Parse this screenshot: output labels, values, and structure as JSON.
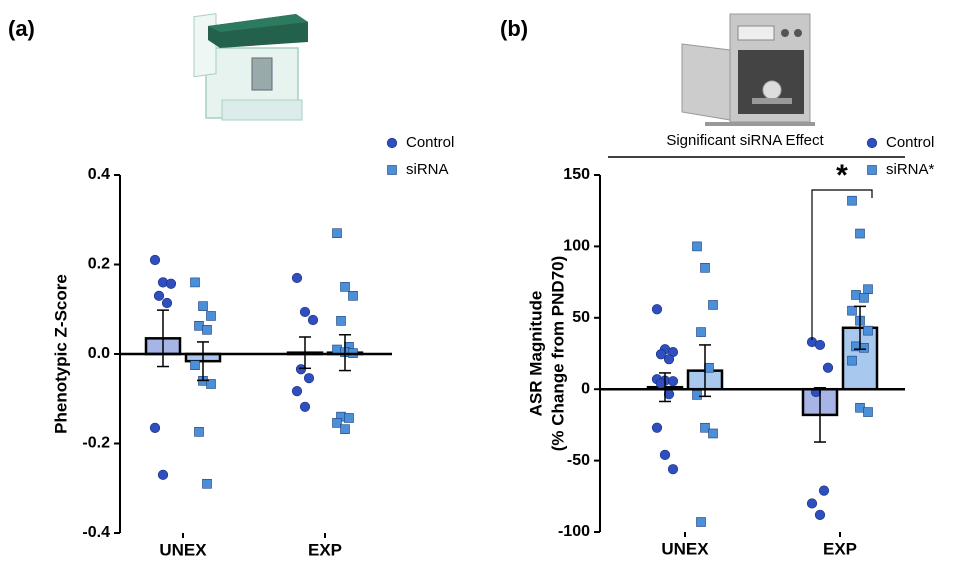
{
  "chart_data": [
    {
      "type": "bar",
      "panel_label": "(a)",
      "ylabel": [
        "Phenotypic Z-Score"
      ],
      "categories": [
        "UNEX",
        "EXP"
      ],
      "series": [
        {
          "name": "Control",
          "color": "#2f4fbf",
          "bar_color": "#a6b4e6",
          "marker": "circle",
          "values": [
            0.035,
            0.003
          ],
          "errors": [
            0.063,
            0.035
          ],
          "points": [
            [
              0.21,
              0.16,
              0.157,
              0.13,
              0.114,
              -0.165,
              -0.27
            ],
            [
              0.17,
              0.094,
              0.076,
              -0.034,
              -0.054,
              -0.083,
              -0.118
            ]
          ]
        },
        {
          "name": "siRNA",
          "color": "#4a8fd8",
          "bar_color": "#a9c8ee",
          "marker": "square",
          "values": [
            -0.016,
            0.003
          ],
          "errors": [
            0.043,
            0.04
          ],
          "points": [
            [
              0.16,
              0.107,
              0.085,
              0.063,
              0.054,
              -0.025,
              -0.06,
              -0.067,
              -0.174,
              -0.29
            ],
            [
              0.27,
              0.15,
              0.13,
              0.074,
              0.016,
              0.01,
              0.004,
              0.002,
              -0.14,
              -0.143,
              -0.154,
              -0.168
            ]
          ]
        }
      ],
      "ylim": [
        -0.4,
        0.4
      ],
      "yticks": [
        -0.4,
        -0.2,
        {
          "value": 0,
          "label": "0.0"
        },
        0.2,
        0.4
      ],
      "legend": "upper right"
    },
    {
      "type": "bar",
      "panel_label": "(b)",
      "ylabel": [
        "ASR Magnitude",
        "(% Change from PND70)"
      ],
      "categories": [
        "UNEX",
        "EXP"
      ],
      "series": [
        {
          "name": "Control",
          "color": "#2f4fbf",
          "bar_color": "#a6b4e6",
          "marker": "circle",
          "values": [
            1.4,
            -18
          ],
          "errors": [
            10,
            19
          ],
          "points": [
            [
              56,
              28,
              26,
              24.5,
              21,
              7,
              6,
              5.6,
              4,
              -3.5,
              -27,
              -46,
              -56
            ],
            [
              33,
              31,
              15,
              -2,
              -71,
              -80,
              -88
            ]
          ]
        },
        {
          "name": "siRNA*",
          "color": "#4a8fd8",
          "bar_color": "#a9c8ee",
          "marker": "square",
          "values": [
            13,
            43
          ],
          "errors": [
            18,
            15
          ],
          "points": [
            [
              100,
              85,
              59,
              40,
              15,
              -4,
              -27,
              -31,
              -93
            ],
            [
              132,
              109,
              70,
              66,
              64,
              55,
              48,
              41,
              30,
              29,
              20,
              -13,
              -16
            ]
          ]
        }
      ],
      "ylim": [
        -100,
        150
      ],
      "yticks": [
        -100,
        -50,
        0,
        50,
        100,
        150
      ],
      "legend": "upper right",
      "effect_label": "Significant siRNA Effect",
      "significance": "*"
    }
  ]
}
